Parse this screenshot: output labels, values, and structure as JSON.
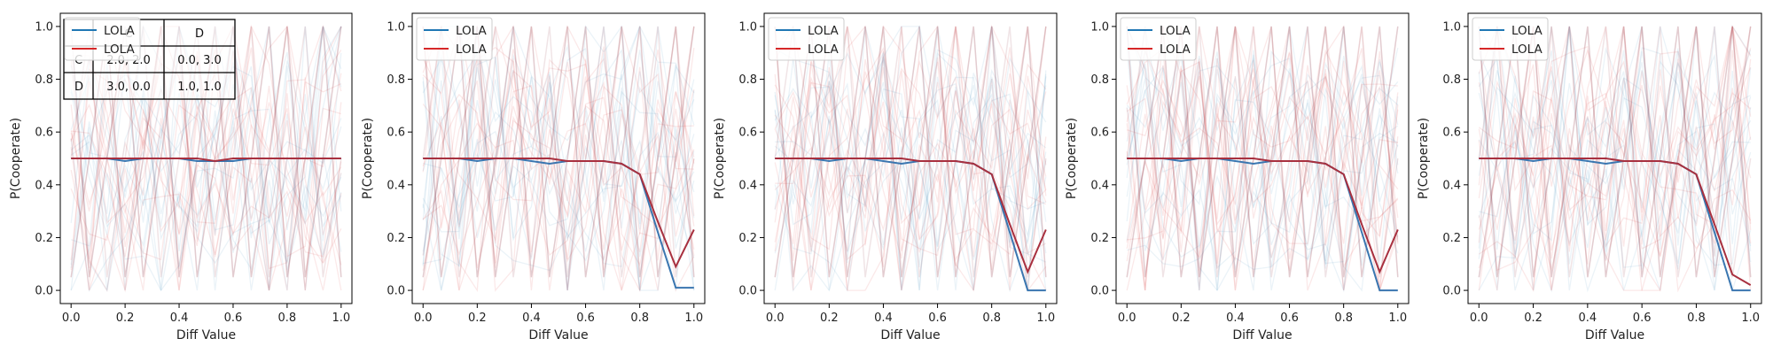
{
  "chart_data": [
    {
      "type": "line",
      "xlabel": "Diff Value",
      "ylabel": "P(Cooperate)",
      "xlim": [
        -0.04,
        1.04
      ],
      "ylim": [
        -0.05,
        1.05
      ],
      "xticks": [
        "0.0",
        "0.2",
        "0.4",
        "0.6",
        "0.8",
        "1.0"
      ],
      "yticks": [
        "0.0",
        "0.2",
        "0.4",
        "0.6",
        "0.8",
        "1.0"
      ],
      "legend": {
        "position": "top-left",
        "entries": [
          "LOLA",
          "LOLA"
        ]
      },
      "colors": {
        "series_1": "#1f77b4",
        "series_2": "#d62728"
      },
      "grid": false,
      "x": [
        0.0,
        0.067,
        0.133,
        0.2,
        0.267,
        0.333,
        0.4,
        0.467,
        0.533,
        0.6,
        0.667,
        0.733,
        0.8,
        0.867,
        0.933,
        1.0
      ],
      "series": [
        {
          "name": "LOLA",
          "values": [
            0.5,
            0.5,
            0.5,
            0.49,
            0.5,
            0.5,
            0.5,
            0.49,
            0.49,
            0.49,
            0.5,
            0.5,
            0.5,
            0.5,
            0.5,
            0.5
          ]
        },
        {
          "name": "LOLA",
          "values": [
            0.5,
            0.5,
            0.5,
            0.5,
            0.5,
            0.5,
            0.5,
            0.5,
            0.49,
            0.5,
            0.5,
            0.5,
            0.5,
            0.5,
            0.5,
            0.5
          ]
        }
      ],
      "payoff_table": {
        "header": [
          "",
          "C",
          "D"
        ],
        "rows": [
          [
            "C",
            "2.0, 2.0",
            "0.0, 3.0"
          ],
          [
            "D",
            "3.0, 0.0",
            "1.0, 1.0"
          ]
        ]
      }
    },
    {
      "type": "line",
      "xlabel": "Diff Value",
      "ylabel": "P(Cooperate)",
      "xlim": [
        -0.04,
        1.04
      ],
      "ylim": [
        -0.05,
        1.05
      ],
      "xticks": [
        "0.0",
        "0.2",
        "0.4",
        "0.6",
        "0.8",
        "1.0"
      ],
      "yticks": [
        "0.0",
        "0.2",
        "0.4",
        "0.6",
        "0.8",
        "1.0"
      ],
      "legend": {
        "position": "top-left",
        "entries": [
          "LOLA",
          "LOLA"
        ]
      },
      "colors": {
        "series_1": "#1f77b4",
        "series_2": "#d62728"
      },
      "grid": false,
      "x": [
        0.0,
        0.067,
        0.133,
        0.2,
        0.267,
        0.333,
        0.4,
        0.467,
        0.533,
        0.6,
        0.667,
        0.733,
        0.8,
        0.867,
        0.933,
        1.0
      ],
      "series": [
        {
          "name": "LOLA",
          "values": [
            0.5,
            0.5,
            0.5,
            0.49,
            0.5,
            0.5,
            0.49,
            0.48,
            0.49,
            0.49,
            0.49,
            0.48,
            0.44,
            0.22,
            0.01,
            0.01
          ]
        },
        {
          "name": "LOLA",
          "values": [
            0.5,
            0.5,
            0.5,
            0.5,
            0.5,
            0.5,
            0.5,
            0.5,
            0.49,
            0.49,
            0.49,
            0.48,
            0.44,
            0.26,
            0.09,
            0.23
          ]
        }
      ]
    },
    {
      "type": "line",
      "xlabel": "Diff Value",
      "ylabel": "P(Cooperate)",
      "xlim": [
        -0.04,
        1.04
      ],
      "ylim": [
        -0.05,
        1.05
      ],
      "xticks": [
        "0.0",
        "0.2",
        "0.4",
        "0.6",
        "0.8",
        "1.0"
      ],
      "yticks": [
        "0.0",
        "0.2",
        "0.4",
        "0.6",
        "0.8",
        "1.0"
      ],
      "legend": {
        "position": "top-left",
        "entries": [
          "LOLA",
          "LOLA"
        ]
      },
      "colors": {
        "series_1": "#1f77b4",
        "series_2": "#d62728"
      },
      "grid": false,
      "x": [
        0.0,
        0.067,
        0.133,
        0.2,
        0.267,
        0.333,
        0.4,
        0.467,
        0.533,
        0.6,
        0.667,
        0.733,
        0.8,
        0.867,
        0.933,
        1.0
      ],
      "series": [
        {
          "name": "LOLA",
          "values": [
            0.5,
            0.5,
            0.5,
            0.49,
            0.5,
            0.5,
            0.49,
            0.48,
            0.49,
            0.49,
            0.49,
            0.48,
            0.44,
            0.22,
            0.0,
            0.0
          ]
        },
        {
          "name": "LOLA",
          "values": [
            0.5,
            0.5,
            0.5,
            0.5,
            0.5,
            0.5,
            0.5,
            0.5,
            0.49,
            0.49,
            0.49,
            0.48,
            0.44,
            0.25,
            0.07,
            0.23
          ]
        }
      ]
    },
    {
      "type": "line",
      "xlabel": "Diff Value",
      "ylabel": "P(Cooperate)",
      "xlim": [
        -0.04,
        1.04
      ],
      "ylim": [
        -0.05,
        1.05
      ],
      "xticks": [
        "0.0",
        "0.2",
        "0.4",
        "0.6",
        "0.8",
        "1.0"
      ],
      "yticks": [
        "0.0",
        "0.2",
        "0.4",
        "0.6",
        "0.8",
        "1.0"
      ],
      "legend": {
        "position": "top-left",
        "entries": [
          "LOLA",
          "LOLA"
        ]
      },
      "colors": {
        "series_1": "#1f77b4",
        "series_2": "#d62728"
      },
      "grid": false,
      "x": [
        0.0,
        0.067,
        0.133,
        0.2,
        0.267,
        0.333,
        0.4,
        0.467,
        0.533,
        0.6,
        0.667,
        0.733,
        0.8,
        0.867,
        0.933,
        1.0
      ],
      "series": [
        {
          "name": "LOLA",
          "values": [
            0.5,
            0.5,
            0.5,
            0.49,
            0.5,
            0.5,
            0.49,
            0.48,
            0.49,
            0.49,
            0.49,
            0.48,
            0.44,
            0.22,
            0.0,
            0.0
          ]
        },
        {
          "name": "LOLA",
          "values": [
            0.5,
            0.5,
            0.5,
            0.5,
            0.5,
            0.5,
            0.5,
            0.5,
            0.49,
            0.49,
            0.49,
            0.48,
            0.44,
            0.25,
            0.07,
            0.23
          ]
        }
      ]
    },
    {
      "type": "line",
      "xlabel": "Diff Value",
      "ylabel": "P(Cooperate)",
      "xlim": [
        -0.04,
        1.04
      ],
      "ylim": [
        -0.05,
        1.05
      ],
      "xticks": [
        "0.0",
        "0.2",
        "0.4",
        "0.6",
        "0.8",
        "1.0"
      ],
      "yticks": [
        "0.0",
        "0.2",
        "0.4",
        "0.6",
        "0.8",
        "1.0"
      ],
      "legend": {
        "position": "top-left",
        "entries": [
          "LOLA",
          "LOLA"
        ]
      },
      "colors": {
        "series_1": "#1f77b4",
        "series_2": "#d62728"
      },
      "grid": false,
      "x": [
        0.0,
        0.067,
        0.133,
        0.2,
        0.267,
        0.333,
        0.4,
        0.467,
        0.533,
        0.6,
        0.667,
        0.733,
        0.8,
        0.867,
        0.933,
        1.0
      ],
      "series": [
        {
          "name": "LOLA",
          "values": [
            0.5,
            0.5,
            0.5,
            0.49,
            0.5,
            0.5,
            0.49,
            0.48,
            0.49,
            0.49,
            0.49,
            0.48,
            0.44,
            0.22,
            0.0,
            0.0
          ]
        },
        {
          "name": "LOLA",
          "values": [
            0.5,
            0.5,
            0.5,
            0.5,
            0.5,
            0.5,
            0.5,
            0.5,
            0.49,
            0.49,
            0.49,
            0.48,
            0.44,
            0.25,
            0.06,
            0.02
          ]
        }
      ]
    }
  ]
}
